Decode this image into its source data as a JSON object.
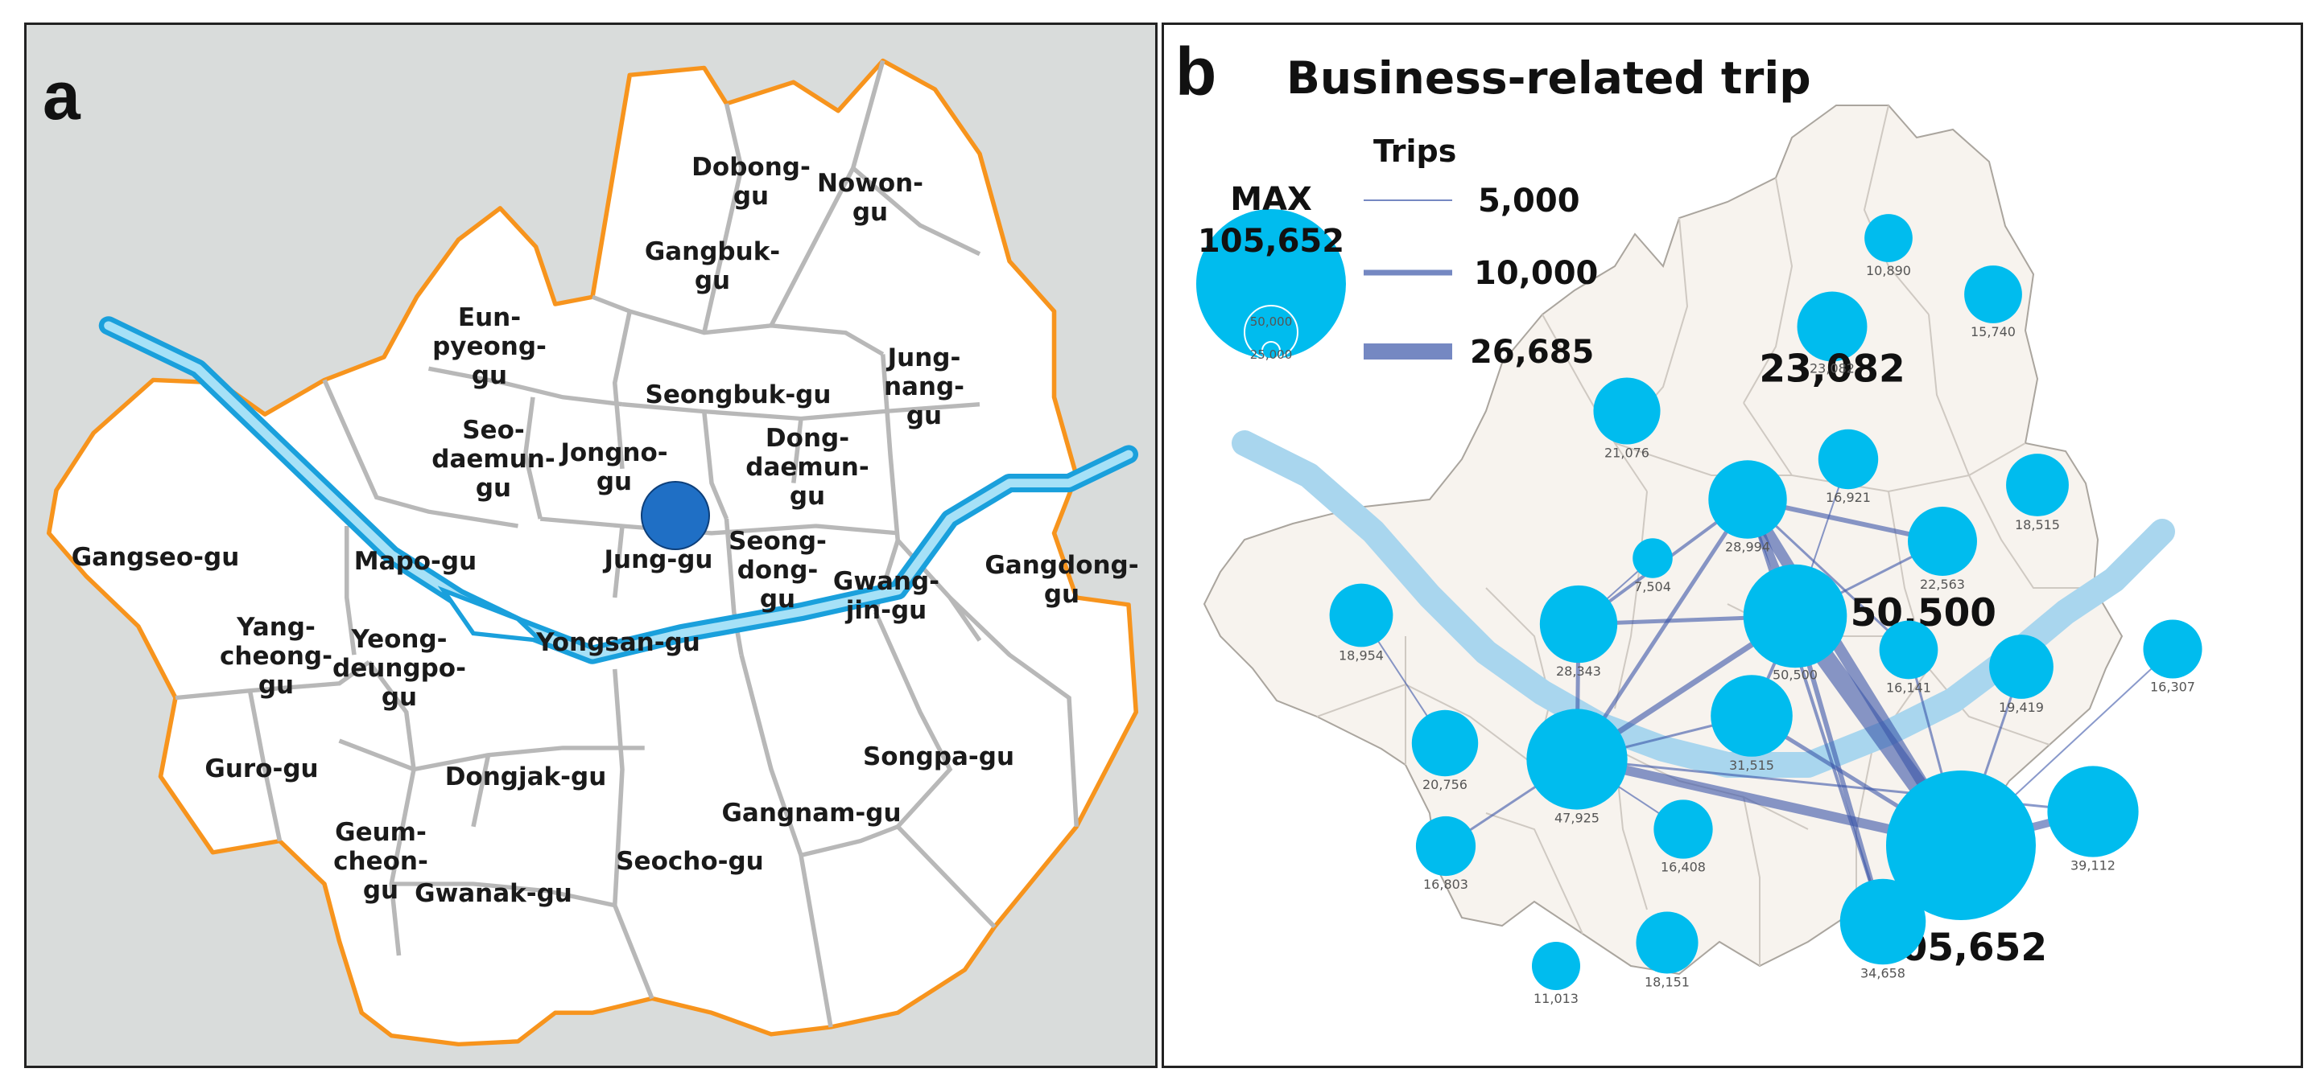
{
  "panel_a": {
    "letter": "a",
    "districts": [
      {
        "name": "Dobong-gu",
        "lines": [
          "Dobong-",
          "gu"
        ]
      },
      {
        "name": "Nowon-gu",
        "lines": [
          "Nowon-",
          "gu"
        ]
      },
      {
        "name": "Gangbuk-gu",
        "lines": [
          "Gangbuk-",
          "gu"
        ]
      },
      {
        "name": "Eunpyeong-gu",
        "lines": [
          "Eun-",
          "pyeong-",
          "gu"
        ]
      },
      {
        "name": "Seongbuk-gu",
        "lines": [
          "Seongbuk-gu"
        ]
      },
      {
        "name": "Jungnang-gu",
        "lines": [
          "Jung-",
          "nang-",
          "gu"
        ]
      },
      {
        "name": "Seodaemun-gu",
        "lines": [
          "Seo-",
          "daemun-",
          "gu"
        ]
      },
      {
        "name": "Jongno-gu",
        "lines": [
          "Jongno-",
          "gu"
        ]
      },
      {
        "name": "Dongdaemun-gu",
        "lines": [
          "Dong-",
          "daemun-",
          "gu"
        ]
      },
      {
        "name": "Gangseo-gu",
        "lines": [
          "Gangseo-gu"
        ]
      },
      {
        "name": "Mapo-gu",
        "lines": [
          "Mapo-gu"
        ]
      },
      {
        "name": "Jung-gu",
        "lines": [
          "Jung-gu"
        ]
      },
      {
        "name": "Seongdong-gu",
        "lines": [
          "Seong-",
          "dong-",
          "gu"
        ]
      },
      {
        "name": "Gwangjin-gu",
        "lines": [
          "Gwang-",
          "jin-gu"
        ]
      },
      {
        "name": "Gangdong-gu",
        "lines": [
          "Gangdong-",
          "gu"
        ]
      },
      {
        "name": "Yongsan-gu",
        "lines": [
          "Yongsan-gu"
        ]
      },
      {
        "name": "Yangcheon-gu",
        "lines": [
          "Yang-",
          "cheong-",
          "gu"
        ]
      },
      {
        "name": "Yeongdeungpo-gu",
        "lines": [
          "Yeong-",
          "deungpo-",
          "gu"
        ]
      },
      {
        "name": "Guro-gu",
        "lines": [
          "Guro-gu"
        ]
      },
      {
        "name": "Dongjak-gu",
        "lines": [
          "Dongjak-gu"
        ]
      },
      {
        "name": "Songpa-gu",
        "lines": [
          "Songpa-gu"
        ]
      },
      {
        "name": "Gangnam-gu",
        "lines": [
          "Gangnam-gu"
        ]
      },
      {
        "name": "Geumcheon-gu",
        "lines": [
          "Geum-",
          "cheon-",
          "gu"
        ]
      },
      {
        "name": "Gwanak-gu",
        "lines": [
          "Gwanak-gu"
        ]
      },
      {
        "name": "Seocho-gu",
        "lines": [
          "Seocho-gu"
        ]
      }
    ],
    "marker": "Jongno-gu",
    "colors": {
      "boundary": "#f7941d",
      "river": "#29abe2",
      "marker": "#1f6fc5",
      "land": "#ffffff",
      "background": "#d9dcdb"
    }
  },
  "panel_b": {
    "letter": "b",
    "title": "Business-related trip",
    "legend": {
      "circle_title": "MAX",
      "circle_max": "105,652",
      "circle_inner": [
        "50,000",
        "25,000"
      ],
      "trips_title": "Trips",
      "line_values": [
        "5,000",
        "10,000",
        "26,685"
      ]
    },
    "nodes": [
      {
        "label": "10,890",
        "value": 10890
      },
      {
        "label": "15,740",
        "value": 15740
      },
      {
        "label": "23,082",
        "value": 23082,
        "highlight": true,
        "small_label": "23,082"
      },
      {
        "label": "21,076",
        "value": 21076
      },
      {
        "label": "16,921",
        "value": 16921
      },
      {
        "label": "18,515",
        "value": 18515
      },
      {
        "label": "28,994",
        "value": 28994
      },
      {
        "label": "22,563",
        "value": 22563
      },
      {
        "label": "7,504",
        "value": 7504
      },
      {
        "label": "18,954",
        "value": 18954
      },
      {
        "label": "28,343",
        "value": 28343
      },
      {
        "label": "50,500",
        "value": 50500,
        "highlight": true,
        "small_label": "50,500"
      },
      {
        "label": "16,141",
        "value": 16141
      },
      {
        "label": "19,419",
        "value": 19419
      },
      {
        "label": "16,307",
        "value": 16307
      },
      {
        "label": "31,515",
        "value": 31515
      },
      {
        "label": "20,756",
        "value": 20756
      },
      {
        "label": "47,925",
        "value": 47925
      },
      {
        "label": "16,408",
        "value": 16408
      },
      {
        "label": "39,112",
        "value": 39112
      },
      {
        "label": "16,803",
        "value": 16803
      },
      {
        "label": "105,652",
        "value": 105652,
        "highlight": true
      },
      {
        "label": "18,151",
        "value": 18151
      },
      {
        "label": "34,658",
        "value": 34658
      },
      {
        "label": "11,013",
        "value": 11013
      }
    ],
    "colors": {
      "node": "#00bcee",
      "flow": "#3a55a8",
      "land": "#f7f3ee",
      "river": "#a9d6ee",
      "boundary": "#c9c5c0"
    }
  }
}
